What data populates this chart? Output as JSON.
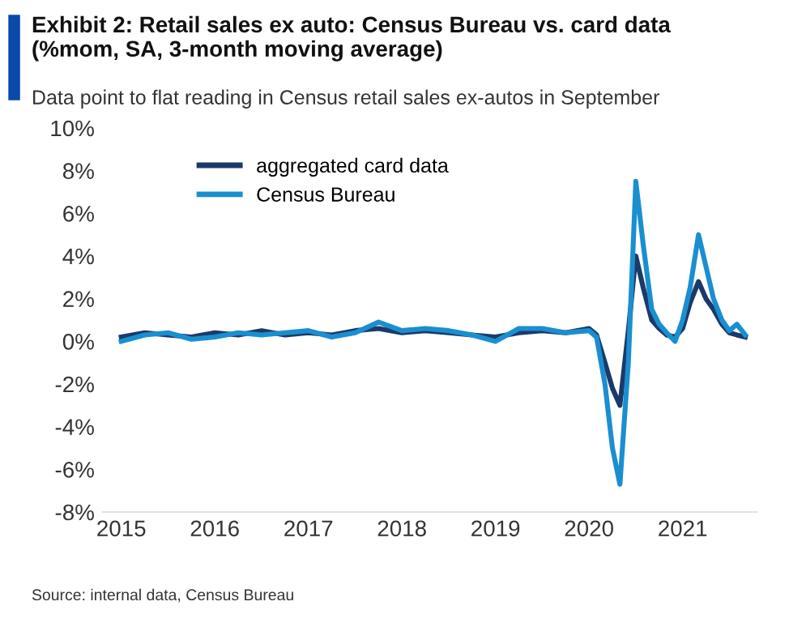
{
  "chart_data": {
    "type": "line",
    "title": "Exhibit 2: Retail sales ex auto: Census Bureau vs. card data\n(%mom, SA, 3-month moving average)",
    "subtitle": "Data point to flat reading in Census retail sales ex-autos in September",
    "annotations": [
      "Source: internal data, Census Bureau"
    ],
    "series": [
      {
        "name": "aggregated card data",
        "color": "#1b3a6b",
        "x": [
          2015.0,
          2015.25,
          2015.5,
          2015.75,
          2016.0,
          2016.25,
          2016.5,
          2016.75,
          2017.0,
          2017.25,
          2017.5,
          2017.75,
          2018.0,
          2018.25,
          2018.5,
          2018.75,
          2019.0,
          2019.25,
          2019.5,
          2019.75,
          2020.0,
          2020.08,
          2020.17,
          2020.25,
          2020.33,
          2020.42,
          2020.5,
          2020.58,
          2020.67,
          2020.75,
          2020.83,
          2020.92,
          2021.0,
          2021.08,
          2021.17,
          2021.25,
          2021.33,
          2021.42,
          2021.5,
          2021.58,
          2021.67
        ],
        "values": [
          0.2,
          0.4,
          0.3,
          0.2,
          0.4,
          0.3,
          0.5,
          0.3,
          0.4,
          0.3,
          0.5,
          0.6,
          0.4,
          0.5,
          0.4,
          0.3,
          0.2,
          0.4,
          0.5,
          0.4,
          0.6,
          0.3,
          -1.0,
          -2.2,
          -3.0,
          0.5,
          4.0,
          2.5,
          1.0,
          0.6,
          0.3,
          0.2,
          0.6,
          1.8,
          2.8,
          2.0,
          1.5,
          0.8,
          0.4,
          0.3,
          0.2
        ]
      },
      {
        "name": "Census Bureau",
        "color": "#1a8fd0",
        "x": [
          2015.0,
          2015.25,
          2015.5,
          2015.75,
          2016.0,
          2016.25,
          2016.5,
          2016.75,
          2017.0,
          2017.25,
          2017.5,
          2017.75,
          2018.0,
          2018.25,
          2018.5,
          2018.75,
          2019.0,
          2019.25,
          2019.5,
          2019.75,
          2020.0,
          2020.08,
          2020.17,
          2020.25,
          2020.33,
          2020.42,
          2020.5,
          2020.58,
          2020.67,
          2020.75,
          2020.83,
          2020.92,
          2021.0,
          2021.08,
          2021.17,
          2021.25,
          2021.33,
          2021.42,
          2021.5,
          2021.58,
          2021.67
        ],
        "values": [
          0.0,
          0.3,
          0.4,
          0.1,
          0.2,
          0.4,
          0.3,
          0.4,
          0.5,
          0.2,
          0.4,
          0.9,
          0.5,
          0.6,
          0.5,
          0.3,
          0.0,
          0.6,
          0.6,
          0.4,
          0.5,
          0.2,
          -2.0,
          -5.0,
          -6.7,
          -1.0,
          7.5,
          4.5,
          1.5,
          0.8,
          0.4,
          0.0,
          1.0,
          2.5,
          5.0,
          3.5,
          2.0,
          1.0,
          0.5,
          0.8,
          0.3
        ]
      }
    ],
    "xlim": [
      2014.8,
      2021.8
    ],
    "xticks": [
      2015,
      2016,
      2017,
      2018,
      2019,
      2020,
      2021
    ],
    "ylim": [
      -8,
      10
    ],
    "yticks": [
      {
        "value": -8,
        "label": "-8%"
      },
      {
        "value": -6,
        "label": "-6%"
      },
      {
        "value": -4,
        "label": "-4%"
      },
      {
        "value": -2,
        "label": "-2%"
      },
      {
        "value": 0,
        "label": "0%"
      },
      {
        "value": 2,
        "label": "2%"
      },
      {
        "value": 4,
        "label": "4%"
      },
      {
        "value": 6,
        "label": "6%"
      },
      {
        "value": 8,
        "label": "8%"
      },
      {
        "value": 10,
        "label": "10%"
      }
    ],
    "legend": "top left"
  }
}
